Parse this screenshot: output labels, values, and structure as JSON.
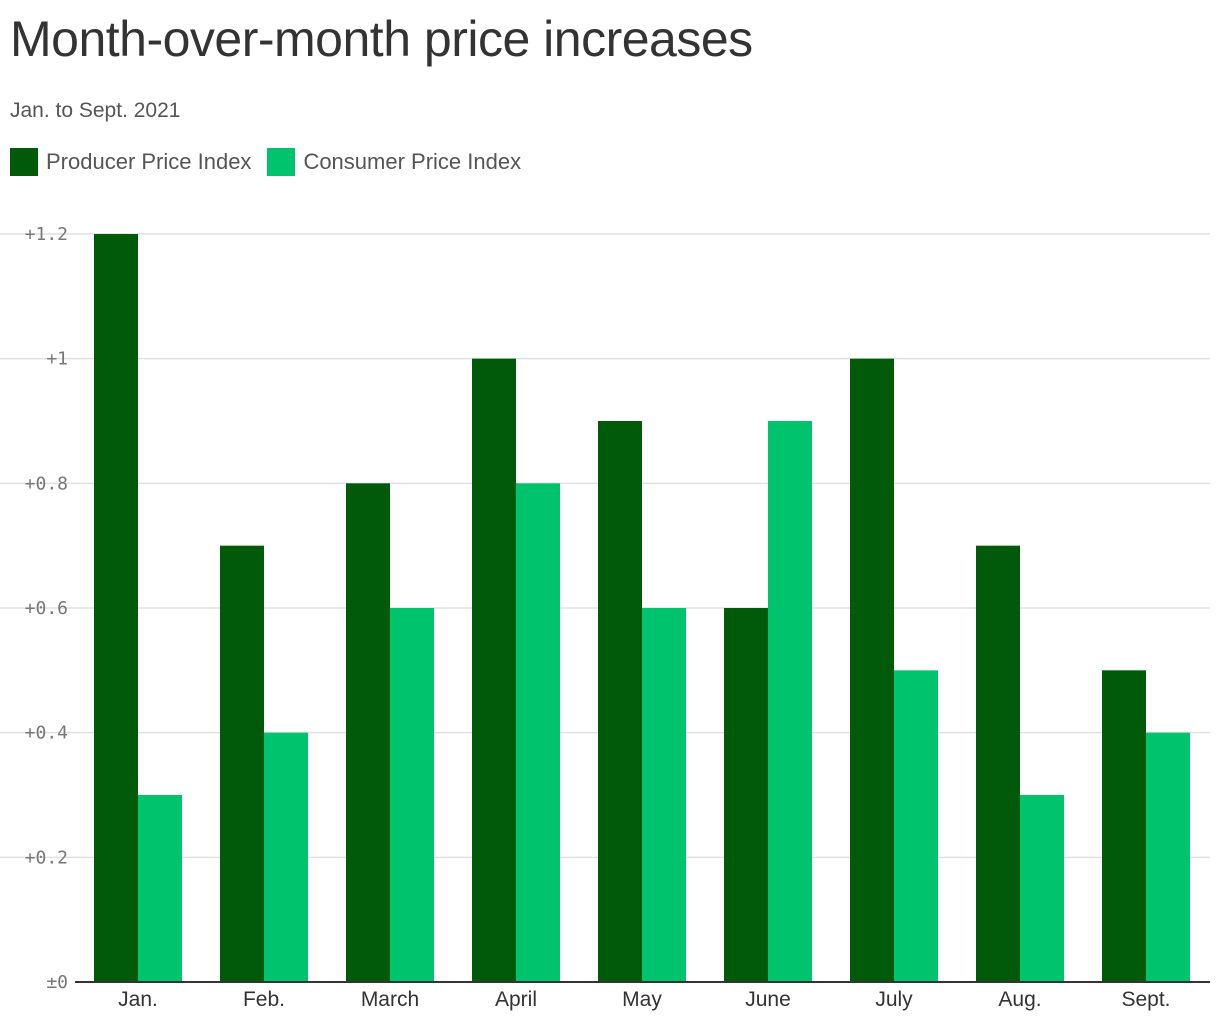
{
  "chart_data": {
    "type": "bar",
    "title": "Month-over-month price increases",
    "subtitle": "Jan. to Sept. 2021",
    "xlabel": "",
    "ylabel": "",
    "ylim": [
      0,
      1.2
    ],
    "yticks": [
      0,
      0.2,
      0.4,
      0.6,
      0.8,
      1,
      1.2
    ],
    "ytick_labels": [
      "±0",
      "+0.2",
      "+0.4",
      "+0.6",
      "+0.8",
      "+1",
      "+1.2"
    ],
    "grid": true,
    "legend_position": "top-left",
    "categories": [
      "Jan.",
      "Feb.",
      "March",
      "April",
      "May",
      "June",
      "July",
      "Aug.",
      "Sept."
    ],
    "series": [
      {
        "name": "Producer Price Index",
        "color": "#005a0a",
        "values": [
          1.2,
          0.7,
          0.8,
          1.0,
          0.9,
          0.6,
          1.0,
          0.7,
          0.5
        ]
      },
      {
        "name": "Consumer Price Index",
        "color": "#00c36e",
        "values": [
          0.3,
          0.4,
          0.6,
          0.8,
          0.6,
          0.9,
          0.5,
          0.3,
          0.4
        ]
      }
    ]
  }
}
